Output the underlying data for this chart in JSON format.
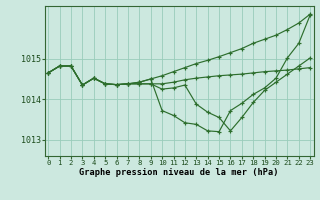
{
  "title": "Graphe pression niveau de la mer (hPa)",
  "bg_color": "#cce8df",
  "grid_color": "#99ccbb",
  "line_color": "#2d6e2d",
  "x_labels": [
    "0",
    "1",
    "2",
    "3",
    "4",
    "5",
    "6",
    "7",
    "8",
    "9",
    "10",
    "11",
    "12",
    "13",
    "14",
    "15",
    "16",
    "17",
    "18",
    "19",
    "20",
    "21",
    "22",
    "23"
  ],
  "ylim": [
    1012.6,
    1016.3
  ],
  "yticks": [
    1013,
    1014,
    1015
  ],
  "lines": [
    [
      1014.65,
      1014.82,
      1014.82,
      1014.35,
      1014.52,
      1014.38,
      1014.36,
      1014.38,
      1014.42,
      1014.5,
      1014.58,
      1014.68,
      1014.78,
      1014.88,
      1014.96,
      1015.05,
      1015.15,
      1015.25,
      1015.38,
      1015.48,
      1015.58,
      1015.72,
      1015.88,
      1016.1
    ],
    [
      1014.65,
      1014.82,
      1014.82,
      1014.35,
      1014.52,
      1014.38,
      1014.36,
      1014.38,
      1014.42,
      1014.5,
      1013.72,
      1013.6,
      1013.42,
      1013.38,
      1013.22,
      1013.2,
      1013.72,
      1013.9,
      1014.12,
      1014.28,
      1014.52,
      1015.02,
      1015.38,
      1016.08
    ],
    [
      1014.65,
      1014.82,
      1014.82,
      1014.35,
      1014.52,
      1014.38,
      1014.36,
      1014.38,
      1014.38,
      1014.38,
      1014.25,
      1014.28,
      1014.35,
      1013.88,
      1013.68,
      1013.55,
      1013.22,
      1013.55,
      1013.92,
      1014.22,
      1014.42,
      1014.62,
      1014.82,
      1015.02
    ],
    [
      1014.65,
      1014.82,
      1014.82,
      1014.35,
      1014.52,
      1014.38,
      1014.36,
      1014.38,
      1014.38,
      1014.38,
      1014.38,
      1014.42,
      1014.48,
      1014.52,
      1014.55,
      1014.58,
      1014.6,
      1014.62,
      1014.65,
      1014.68,
      1014.7,
      1014.72,
      1014.75,
      1014.78
    ]
  ]
}
